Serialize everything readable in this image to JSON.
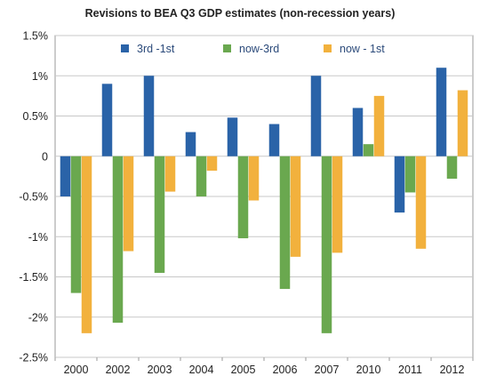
{
  "chart_data": {
    "type": "bar",
    "title": "Revisions to BEA  Q3 GDP estimates (non-recession years)",
    "xlabel": "",
    "ylabel": "",
    "categories": [
      "2000",
      "2002",
      "2003",
      "2004",
      "2005",
      "2006",
      "2007",
      "2010",
      "2011",
      "2012"
    ],
    "series": [
      {
        "name": "3rd -1st",
        "color": "#2a63a8",
        "values": [
          -0.5,
          0.9,
          1.0,
          0.3,
          0.48,
          0.4,
          1.0,
          0.6,
          -0.7,
          1.1
        ]
      },
      {
        "name": "now-3rd",
        "color": "#6aa84f",
        "values": [
          -1.7,
          -2.07,
          -1.45,
          -0.5,
          -1.02,
          -1.65,
          -2.2,
          0.15,
          -0.45,
          -0.28
        ]
      },
      {
        "name": "now - 1st",
        "color": "#f2b13d",
        "values": [
          -2.2,
          -1.18,
          -0.44,
          -0.18,
          -0.55,
          -1.25,
          -1.2,
          0.75,
          -1.15,
          0.82
        ]
      }
    ],
    "ylim": [
      -2.5,
      1.5
    ],
    "yticks": [
      1.5,
      1,
      0.5,
      0,
      -0.5,
      -1,
      -1.5,
      -2,
      -2.5
    ],
    "ytick_labels": [
      "1.5%",
      "1%",
      "0.5%",
      "0",
      "-0.5%",
      "-1%",
      "-1.5%",
      "-2%",
      "-2.5%"
    ],
    "grid": true,
    "legend": "top"
  }
}
